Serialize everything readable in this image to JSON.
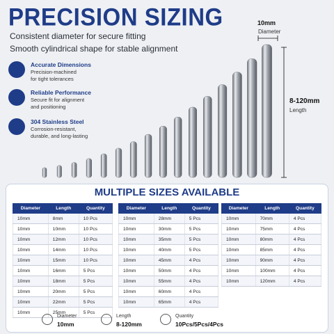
{
  "header": {
    "title": "PRECISION SIZING",
    "subtitle": [
      "Consistent diameter for secure fitting",
      "Smooth cylindrical shape for stable alignment"
    ]
  },
  "features": [
    {
      "title": "Accurate Dimensions",
      "description": [
        "Precision-machined",
        "for tight tolerances"
      ]
    },
    {
      "title": "Reliable Performance",
      "description": [
        "Secure fit for alignment",
        "and positioning"
      ]
    },
    {
      "title": "304 Stainless Steel",
      "description": [
        "Corrosion-resistant,",
        "durable, and long-lasting"
      ]
    }
  ],
  "dimensions": {
    "diameter_value": "10mm",
    "diameter_label": "Diameter",
    "length_value": "8-120mm",
    "length_label": "Length"
  },
  "sizes": {
    "title": "MULTIPLE SIZES AVAILABLE",
    "tables": [
      {
        "headers": [
          "Diameter",
          "Length",
          "Quantity"
        ],
        "rows": [
          [
            "10mm",
            "8mm",
            "10 Pcs"
          ],
          [
            "10mm",
            "10mm",
            "10 Pcs"
          ],
          [
            "10mm",
            "12mm",
            "10 Pcs"
          ],
          [
            "10mm",
            "14mm",
            "10 Pcs"
          ],
          [
            "10mm",
            "15mm",
            "10 Pcs"
          ],
          [
            "10mm",
            "16mm",
            "5 Pcs"
          ],
          [
            "10mm",
            "18mm",
            "5 Pcs"
          ],
          [
            "10mm",
            "20mm",
            "5 Pcs"
          ],
          [
            "10mm",
            "22mm",
            "5 Pcs"
          ],
          [
            "10mm",
            "25mm",
            "5 Pcs"
          ]
        ]
      },
      {
        "headers": [
          "Diameter",
          "Length",
          "Quantity"
        ],
        "rows": [
          [
            "10mm",
            "28mm",
            "5 Pcs"
          ],
          [
            "10mm",
            "30mm",
            "5 Pcs"
          ],
          [
            "10mm",
            "35mm",
            "5 Pcs"
          ],
          [
            "10mm",
            "40mm",
            "5 Pcs"
          ],
          [
            "10mm",
            "45mm",
            "4 Pcs"
          ],
          [
            "10mm",
            "50mm",
            "4 Pcs"
          ],
          [
            "10mm",
            "55mm",
            "4 Pcs"
          ],
          [
            "10mm",
            "60mm",
            "4 Pcs"
          ],
          [
            "10mm",
            "65mm",
            "4 Pcs"
          ]
        ]
      },
      {
        "headers": [
          "Diameter",
          "Length",
          "Quantity"
        ],
        "rows": [
          [
            "10mm",
            "70mm",
            "4 Pcs"
          ],
          [
            "10mm",
            "75mm",
            "4 Pcs"
          ],
          [
            "10mm",
            "80mm",
            "4 Pcs"
          ],
          [
            "10mm",
            "85mm",
            "4 Pcs"
          ],
          [
            "10mm",
            "90mm",
            "4 Pcs"
          ],
          [
            "10mm",
            "100mm",
            "4 Pcs"
          ],
          [
            "10mm",
            "120mm",
            "4 Pcs"
          ]
        ]
      }
    ]
  },
  "footer": [
    {
      "label": "Diameter",
      "value": "10mm"
    },
    {
      "label": "Length",
      "value": "8-120mm"
    },
    {
      "label": "Quantity",
      "value": "10Pcs/5Pcs/4Pcs"
    }
  ]
}
